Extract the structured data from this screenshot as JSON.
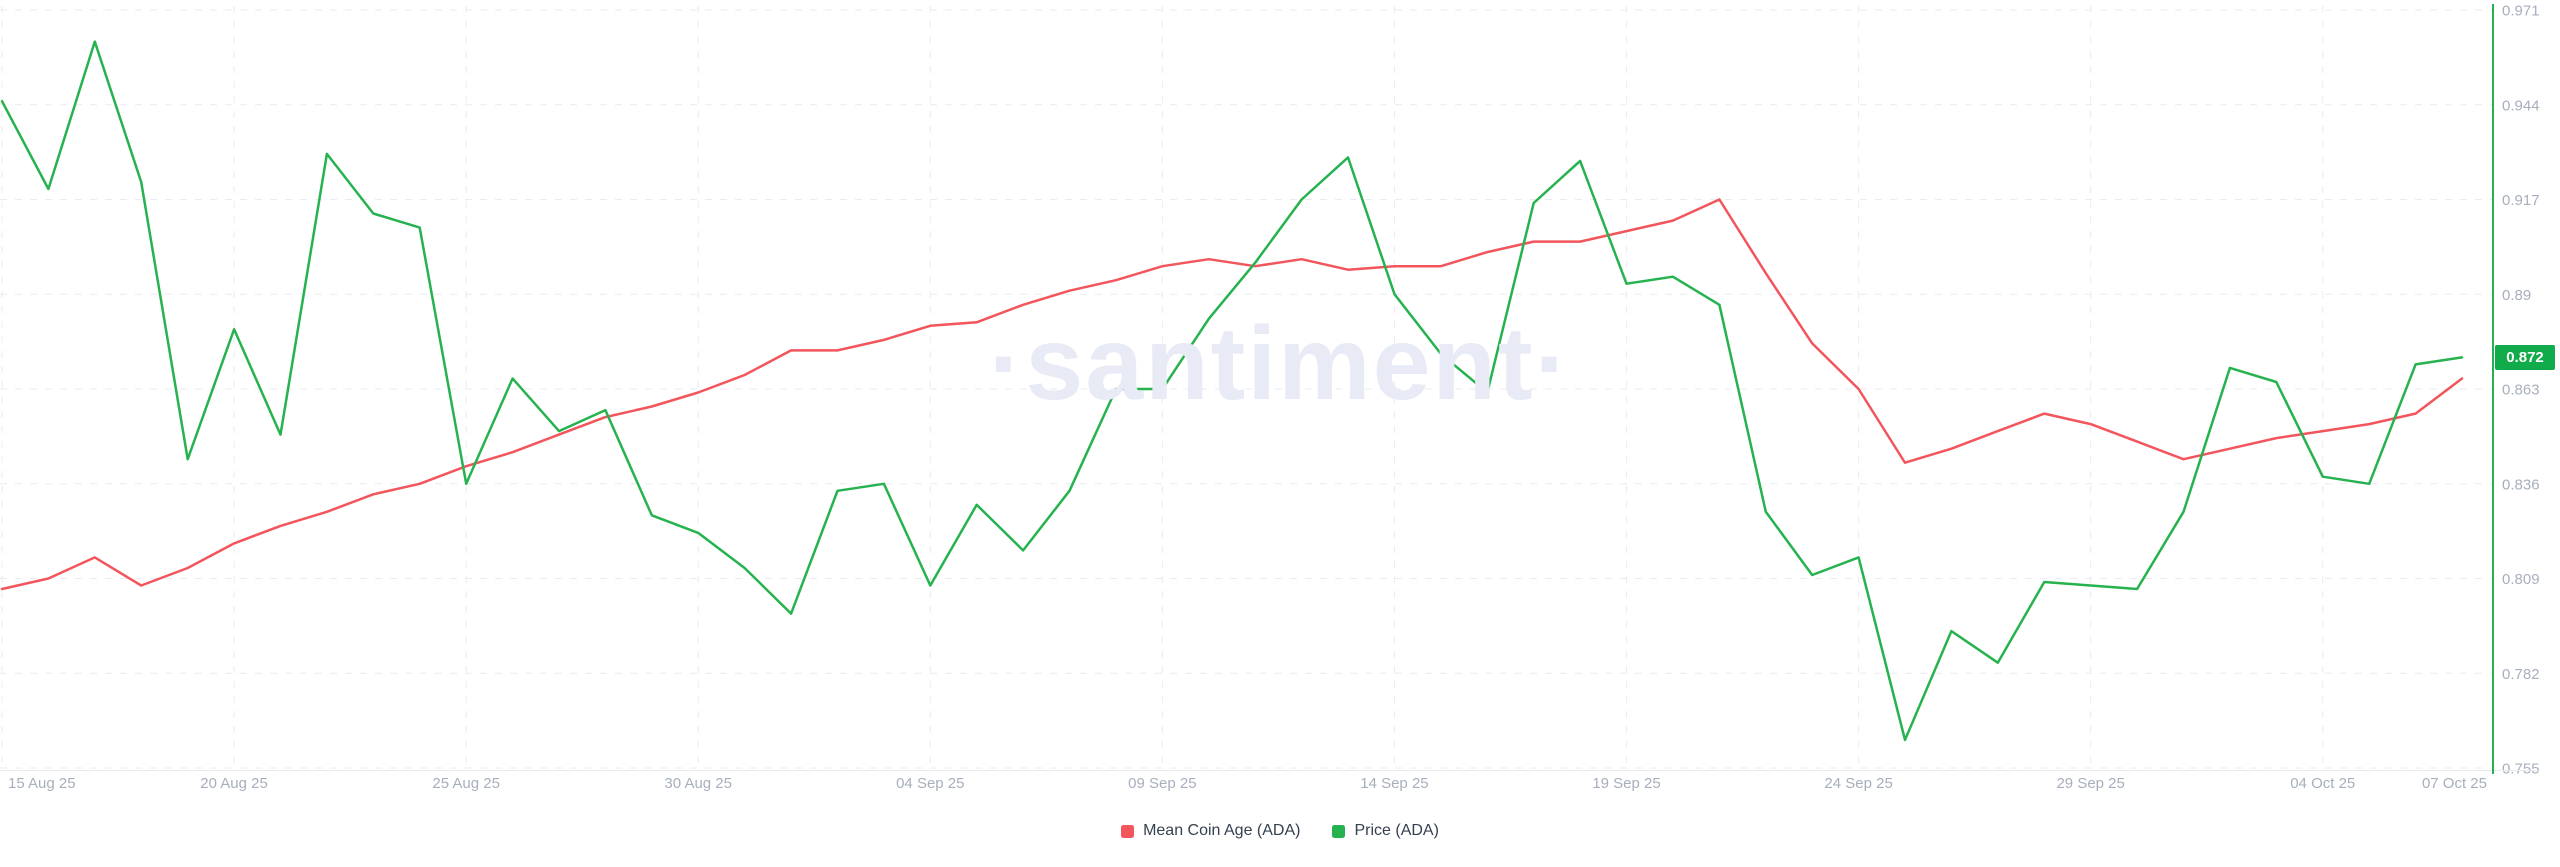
{
  "watermark": {
    "text": "·santiment·"
  },
  "badge": {
    "value": "0.872"
  },
  "colors": {
    "red": "#f2555c",
    "green": "#26b24e",
    "badge_bg": "#12ab4c",
    "badge_text": "#ffffff",
    "grid": "#e9ebf0",
    "axis_line": "#e9ebef",
    "axis_label": "#a7afbd",
    "legend_text": "#36414f",
    "watermark": "#e8eaf5"
  },
  "chart_data": {
    "type": "line",
    "title": "",
    "xlabel": "",
    "ylabel": "",
    "grid": "dashed",
    "legend_position": "bottom-center",
    "ylim": [
      0.755,
      0.971
    ],
    "y_ticks": [
      "0.971",
      "0.944",
      "0.917",
      "0.89",
      "0.863",
      "0.836",
      "0.809",
      "0.782",
      "0.755"
    ],
    "y_tick_values": [
      0.971,
      0.944,
      0.917,
      0.89,
      0.863,
      0.836,
      0.809,
      0.782,
      0.755
    ],
    "x_tick_labels": [
      "15 Aug 25",
      "20 Aug 25",
      "25 Aug 25",
      "30 Aug 25",
      "04 Sep 25",
      "09 Sep 25",
      "14 Sep 25",
      "19 Sep 25",
      "24 Sep 25",
      "29 Sep 25",
      "04 Oct 25",
      "07 Oct 25"
    ],
    "x_tick_day_index": [
      0,
      5,
      10,
      15,
      20,
      25,
      30,
      35,
      40,
      45,
      50,
      53
    ],
    "current_value_marker": {
      "series": "Price (ADA)",
      "value": 0.872
    },
    "dates": [
      "2025-08-15",
      "2025-08-16",
      "2025-08-17",
      "2025-08-18",
      "2025-08-19",
      "2025-08-20",
      "2025-08-21",
      "2025-08-22",
      "2025-08-23",
      "2025-08-24",
      "2025-08-25",
      "2025-08-26",
      "2025-08-27",
      "2025-08-28",
      "2025-08-29",
      "2025-08-30",
      "2025-08-31",
      "2025-09-01",
      "2025-09-02",
      "2025-09-03",
      "2025-09-04",
      "2025-09-05",
      "2025-09-06",
      "2025-09-07",
      "2025-09-08",
      "2025-09-09",
      "2025-09-10",
      "2025-09-11",
      "2025-09-12",
      "2025-09-13",
      "2025-09-14",
      "2025-09-15",
      "2025-09-16",
      "2025-09-17",
      "2025-09-18",
      "2025-09-19",
      "2025-09-20",
      "2025-09-21",
      "2025-09-22",
      "2025-09-23",
      "2025-09-24",
      "2025-09-25",
      "2025-09-26",
      "2025-09-27",
      "2025-09-28",
      "2025-09-29",
      "2025-09-30",
      "2025-10-01",
      "2025-10-02",
      "2025-10-03",
      "2025-10-04",
      "2025-10-05",
      "2025-10-06",
      "2025-10-07"
    ],
    "series": [
      {
        "name": "Mean Coin Age (ADA)",
        "color": "#f2555c",
        "values": [
          0.806,
          0.809,
          0.815,
          0.807,
          0.812,
          0.819,
          0.824,
          0.828,
          0.833,
          0.836,
          0.841,
          0.845,
          0.85,
          0.855,
          0.858,
          0.862,
          0.867,
          0.874,
          0.874,
          0.877,
          0.881,
          0.882,
          0.887,
          0.891,
          0.894,
          0.898,
          0.9,
          0.898,
          0.9,
          0.897,
          0.898,
          0.898,
          0.902,
          0.905,
          0.905,
          0.908,
          0.911,
          0.917,
          0.896,
          0.876,
          0.863,
          0.842,
          0.846,
          0.851,
          0.856,
          0.853,
          0.848,
          0.843,
          0.846,
          0.849,
          0.851,
          0.853,
          0.856,
          0.866
        ]
      },
      {
        "name": "Price (ADA)",
        "color": "#26b24e",
        "values": [
          0.945,
          0.92,
          0.962,
          0.922,
          0.843,
          0.88,
          0.85,
          0.93,
          0.913,
          0.909,
          0.836,
          0.866,
          0.851,
          0.857,
          0.827,
          0.822,
          0.812,
          0.799,
          0.834,
          0.836,
          0.807,
          0.83,
          0.817,
          0.834,
          0.863,
          0.863,
          0.883,
          0.899,
          0.917,
          0.929,
          0.89,
          0.873,
          0.862,
          0.916,
          0.928,
          0.893,
          0.895,
          0.887,
          0.828,
          0.81,
          0.815,
          0.763,
          0.794,
          0.785,
          0.808,
          0.807,
          0.806,
          0.828,
          0.869,
          0.865,
          0.838,
          0.836,
          0.87,
          0.872
        ]
      }
    ]
  },
  "legend": {
    "items": [
      {
        "label": "Mean Coin Age (ADA)"
      },
      {
        "label": "Price (ADA)"
      }
    ]
  }
}
